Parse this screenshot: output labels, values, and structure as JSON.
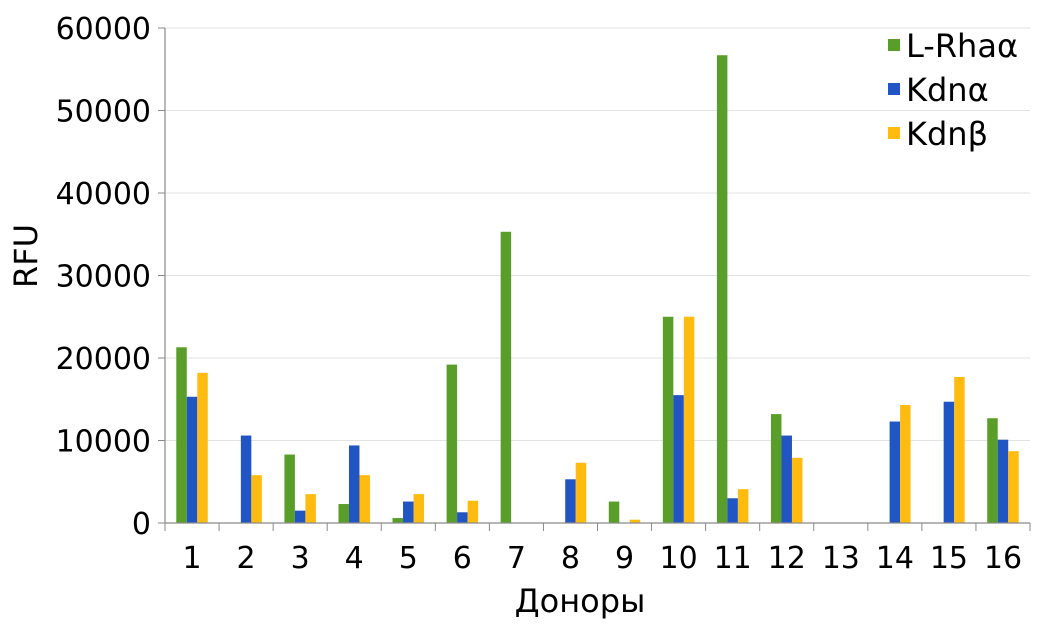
{
  "chart_data": {
    "type": "bar",
    "title": "",
    "xlabel": "Доноры",
    "ylabel": "RFU",
    "ylim": [
      0,
      60000
    ],
    "yticks": [
      0,
      10000,
      20000,
      30000,
      40000,
      50000,
      60000
    ],
    "grid": true,
    "legend_position": "top-right",
    "categories": [
      "1",
      "2",
      "3",
      "4",
      "5",
      "6",
      "7",
      "8",
      "9",
      "10",
      "11",
      "12",
      "13",
      "14",
      "15",
      "16"
    ],
    "series": [
      {
        "name": "L-Rhaα",
        "color": "#5a9e2a",
        "values": [
          21300,
          0,
          8300,
          2300,
          600,
          19200,
          35300,
          0,
          2600,
          25000,
          56700,
          13200,
          0,
          0,
          0,
          12700
        ]
      },
      {
        "name": "Kdnα",
        "color": "#2255c4",
        "values": [
          15300,
          10600,
          1500,
          9400,
          2600,
          1300,
          0,
          5300,
          0,
          15500,
          3000,
          10600,
          0,
          12300,
          14700,
          10100
        ]
      },
      {
        "name": "Kdnβ",
        "color": "#ffbb10",
        "values": [
          18200,
          5800,
          3500,
          5800,
          3500,
          2700,
          0,
          7300,
          400,
          25000,
          4100,
          7900,
          0,
          14300,
          17700,
          8700
        ]
      }
    ]
  }
}
